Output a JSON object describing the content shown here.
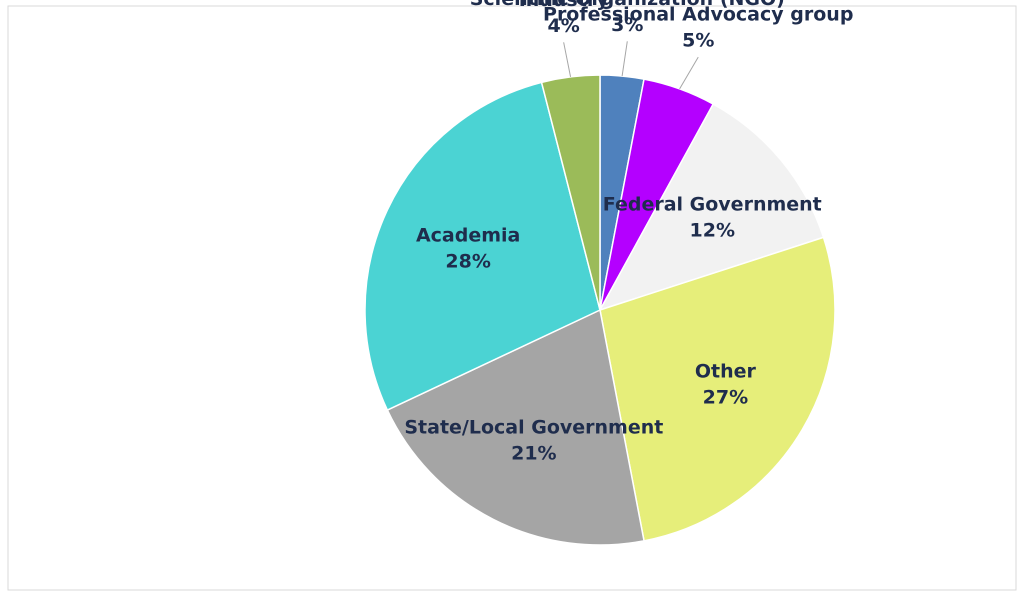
{
  "chart_data": {
    "type": "pie",
    "categories": [
      "Scientific Organization  (NGO)",
      "Professional Advocacy group",
      "Federal Government",
      "Other",
      "State/Local Government",
      "Academia",
      "Industry"
    ],
    "values": [
      3,
      5,
      12,
      27,
      21,
      28,
      4
    ],
    "value_labels": [
      "3%",
      "5%",
      "12%",
      "27%",
      "21%",
      "28%",
      "4%"
    ],
    "colors": [
      "#4f81bd",
      "#b400ff",
      "#f2f2f2",
      "#e6ee7a",
      "#a5a5a5",
      "#4bd3d3",
      "#9bbb59"
    ]
  }
}
